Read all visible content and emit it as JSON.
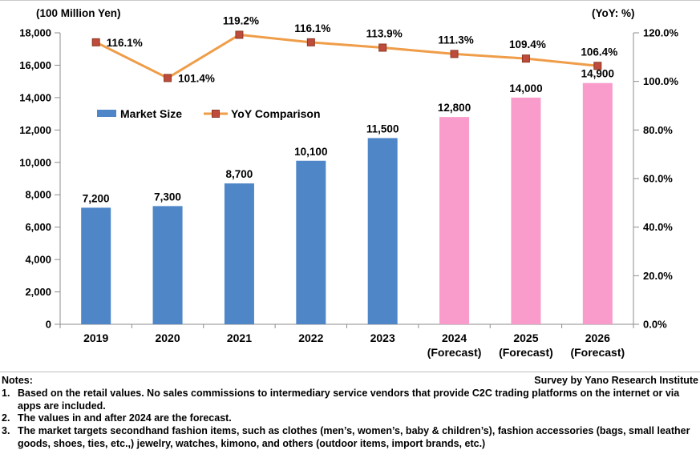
{
  "legend": {
    "market_size_label": "Market Size",
    "yoy_label": "YoY Comparison"
  },
  "chart_data": {
    "type": "bar+line combo",
    "categories": [
      [
        "2019"
      ],
      [
        "2020"
      ],
      [
        "2021"
      ],
      [
        "2022"
      ],
      [
        "2023"
      ],
      [
        "2024",
        "(Forecast)"
      ],
      [
        "2025",
        "(Forecast)"
      ],
      [
        "2026",
        "(Forecast)"
      ]
    ],
    "series": [
      {
        "name": "Market Size",
        "type": "bar",
        "axis": "left",
        "values": [
          7200,
          7300,
          8700,
          10100,
          11500,
          12800,
          14000,
          14900
        ],
        "labels": [
          "7,200",
          "7,300",
          "8,700",
          "10,100",
          "11,500",
          "12,800",
          "14,000",
          "14,900"
        ]
      },
      {
        "name": "YoY Comparison",
        "type": "line",
        "axis": "right",
        "values": [
          116.1,
          101.4,
          119.2,
          116.1,
          113.9,
          111.3,
          109.4,
          106.4
        ],
        "labels": [
          "116.1%",
          "101.4%",
          "119.2%",
          "116.1%",
          "113.9%",
          "111.3%",
          "109.4%",
          "106.4%"
        ],
        "label_positions": [
          "right",
          "right",
          "above",
          "above",
          "above",
          "above",
          "above",
          "above"
        ]
      }
    ],
    "forecast_from_index": 5,
    "left_axis": {
      "title": "(100 Million Yen)",
      "min": 0,
      "max": 18000,
      "step": 2000,
      "tick_labels": [
        "0",
        "2,000",
        "4,000",
        "6,000",
        "8,000",
        "10,000",
        "12,000",
        "14,000",
        "16,000",
        "18,000"
      ]
    },
    "right_axis": {
      "title": "(YoY: %)",
      "min": 0,
      "max": 120,
      "step": 20,
      "tick_labels": [
        "0.0%",
        "20.0%",
        "40.0%",
        "60.0%",
        "80.0%",
        "100.0%",
        "120.0%"
      ]
    },
    "colors": {
      "actual_bar": "#4E86C8",
      "forecast_bar": "#F99BCB",
      "line": "#EF9D49",
      "marker": "#BE4B3C",
      "marker_border": "#8B3A23",
      "axis": "#8C8C8C"
    },
    "grid": "off",
    "legend_position": "inside top-left"
  },
  "footer": {
    "notes_label": "Notes:",
    "survey_credit": "Survey by Yano Research Institute",
    "notes": [
      {
        "num": "1.",
        "text": "Based on the retail values. No sales commissions to intermediary service vendors that provide C2C trading platforms on the internet or via apps are included."
      },
      {
        "num": "2.",
        "text": "The values in and after 2024 are the forecast."
      },
      {
        "num": "3.",
        "text": "The market targets secondhand fashion items, such as clothes (men’s, women’s, baby & children’s), fashion accessories (bags, small leather goods, shoes, ties, etc.,) jewelry, watches, kimono, and others (outdoor items, import brands, etc.)"
      }
    ]
  }
}
